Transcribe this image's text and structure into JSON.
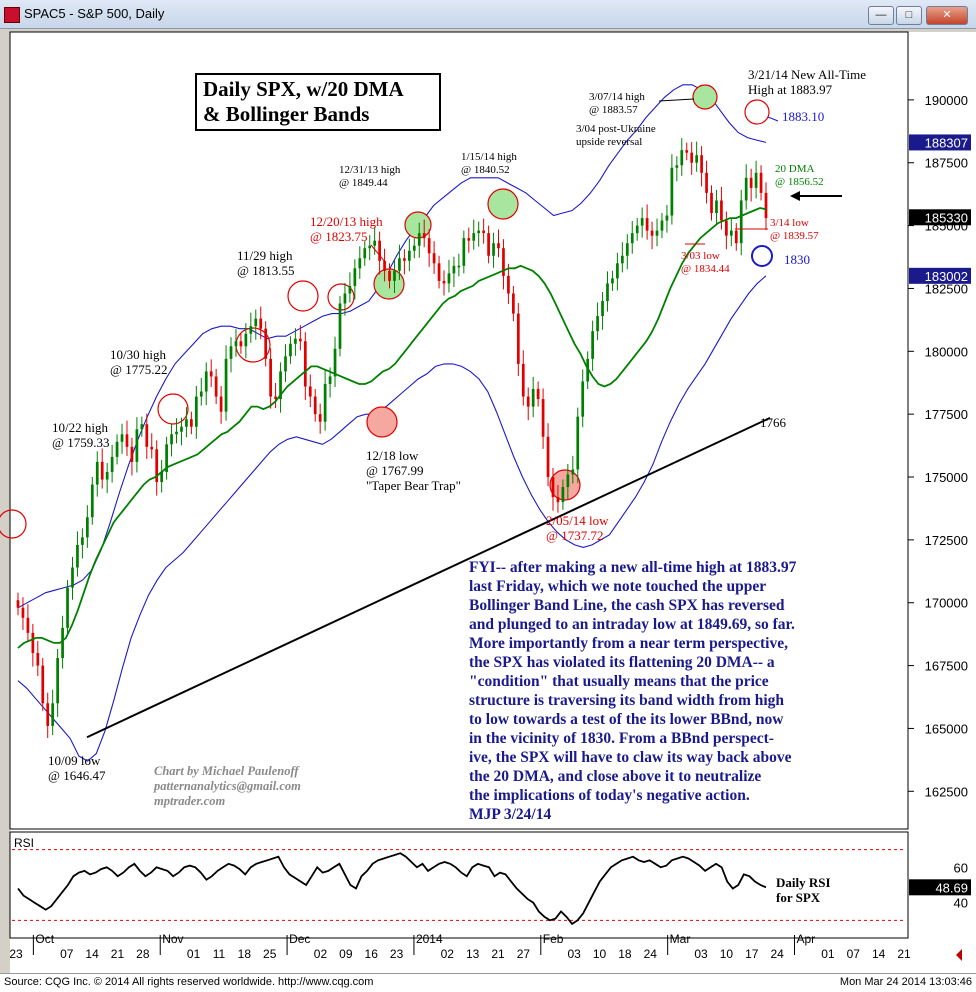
{
  "window": {
    "title": "SPAC5 - S&P 500, Daily",
    "buttons": {
      "minimize": "—",
      "restore": "□",
      "close": "✕"
    }
  },
  "chart_data": {
    "type": "candlestick",
    "title": "Daily SPX, w/20 DMA & Bollinger Bands",
    "title_lines": [
      "Daily SPX, w/20 DMA",
      "& Bollinger Bands"
    ],
    "y_ticks": [
      162500,
      165000,
      167500,
      170000,
      172500,
      175000,
      177500,
      180000,
      182500,
      185000,
      187500,
      190000
    ],
    "y_tick_labels": [
      "162500",
      "165000",
      "167500",
      "170000",
      "172500",
      "175000",
      "177500",
      "180000",
      "182500",
      "185000",
      "187500",
      "190000"
    ],
    "ylim": [
      161000,
      192700
    ],
    "last_price": "185330",
    "upper_band_value": "188307",
    "lower_band_value": "183002",
    "x_tick_labels": [
      "23",
      "Oct",
      "07",
      "14",
      "21",
      "28",
      "Nov",
      "01",
      "11",
      "18",
      "25",
      "Dec",
      "02",
      "09",
      "16",
      "23",
      "2014",
      "02",
      "13",
      "21",
      "27",
      "Feb",
      "03",
      "10",
      "18",
      "24",
      "Mar",
      "03",
      "10",
      "17",
      "24",
      "Apr",
      "01",
      "07",
      "14",
      "21"
    ],
    "close_path": [
      169800,
      169400,
      168800,
      168000,
      167500,
      166000,
      165100,
      166000,
      167800,
      169000,
      170600,
      171400,
      172300,
      172600,
      173400,
      174700,
      175600,
      174900,
      175200,
      175800,
      176400,
      176700,
      176200,
      175600,
      176900,
      177100,
      176200,
      176100,
      174800,
      175200,
      176300,
      176700,
      176800,
      177000,
      177300,
      177000,
      178200,
      178400,
      179200,
      179000,
      178200,
      177600,
      179700,
      180200,
      180400,
      180200,
      180700,
      181000,
      181300,
      180900,
      179700,
      178200,
      178100,
      179200,
      179800,
      180300,
      180500,
      180400,
      178600,
      178200,
      177500,
      177200,
      178700,
      179000,
      180100,
      181900,
      182300,
      182600,
      183300,
      183700,
      184100,
      184200,
      184400,
      183600,
      183200,
      182800,
      183200,
      183700,
      183600,
      184000,
      184200,
      184700,
      184500,
      183900,
      183500,
      182800,
      182700,
      183100,
      183400,
      183400,
      184500,
      184400,
      184700,
      184800,
      184700,
      183800,
      184300,
      184100,
      183000,
      182300,
      181500,
      179500,
      178200,
      177800,
      178500,
      178100,
      176600,
      175000,
      174200,
      174000,
      174600,
      175100,
      175300,
      177400,
      178800,
      179700,
      180800,
      181400,
      182000,
      182700,
      182900,
      183500,
      183800,
      184300,
      184700,
      185000,
      185300,
      184800,
      184600,
      184800,
      185200,
      185400,
      187300,
      187400,
      188000,
      187900,
      187500,
      187800,
      187100,
      186300,
      185500,
      186000,
      185200,
      184600,
      184800,
      184300,
      186000,
      186900,
      186500,
      187100,
      186300,
      185300
    ],
    "ma20_path": [
      168200,
      168400,
      168500,
      168600,
      168600,
      168500,
      168400,
      168400,
      168600,
      169100,
      169700,
      170400,
      171100,
      171700,
      172200,
      172700,
      173200,
      173500,
      173800,
      174100,
      174400,
      174700,
      174900,
      175000,
      175200,
      175400,
      175500,
      175600,
      175700,
      175800,
      175900,
      176100,
      176300,
      176500,
      176700,
      176800,
      177000,
      177200,
      177500,
      177800,
      177800,
      177700,
      177800,
      178000,
      178300,
      178600,
      178800,
      179000,
      179200,
      179400,
      179400,
      179300,
      179200,
      179100,
      179000,
      178900,
      178800,
      178700,
      178700,
      178800,
      179000,
      179200,
      179300,
      179500,
      179800,
      180100,
      180400,
      180700,
      181000,
      181300,
      181600,
      181900,
      182100,
      182200,
      182400,
      182500,
      182600,
      182800,
      182900,
      183000,
      183100,
      183200,
      183300,
      183300,
      183400,
      183300,
      183200,
      183000,
      182700,
      182300,
      181800,
      181300,
      180800,
      180300,
      179900,
      179400,
      179000,
      178700,
      178600,
      178700,
      178900,
      179200,
      179500,
      179800,
      180100,
      180400,
      180800,
      181300,
      181900,
      182500,
      183000,
      183500,
      183900,
      184200,
      184500,
      184700,
      184900,
      185100,
      185200,
      185300,
      185300,
      185400,
      185500,
      185600,
      185700,
      185652
    ],
    "upper_band_path": [
      169800,
      170000,
      170200,
      170400,
      170500,
      170600,
      170700,
      170900,
      171300,
      172100,
      173200,
      174400,
      175500,
      176500,
      177400,
      178200,
      178900,
      179500,
      179900,
      180300,
      180700,
      180900,
      181000,
      181000,
      180900,
      180900,
      180700,
      180500,
      180600,
      180600,
      180800,
      181000,
      181200,
      181400,
      181500,
      181500,
      181600,
      181800,
      182000,
      182500,
      183100,
      183800,
      184400,
      184900,
      185300,
      185800,
      186100,
      186400,
      186700,
      186900,
      186900,
      186900,
      186900,
      186700,
      186500,
      186300,
      186000,
      185700,
      185400,
      185500,
      185600,
      185900,
      186300,
      186800,
      187400,
      187900,
      188400,
      188800,
      189300,
      189700,
      190100,
      190400,
      190600,
      190600,
      190400,
      190100,
      189600,
      189100,
      188700,
      188500,
      188400,
      188307
    ],
    "lower_band_path": [
      166900,
      166600,
      166200,
      165800,
      165400,
      165000,
      164600,
      163900,
      163700,
      164000,
      164900,
      166100,
      167400,
      168600,
      169500,
      170300,
      170900,
      171400,
      171700,
      172000,
      172400,
      172800,
      173200,
      173600,
      174000,
      174400,
      174800,
      175200,
      175600,
      176000,
      176300,
      176500,
      176600,
      176500,
      176400,
      176300,
      176500,
      176800,
      177100,
      177400,
      177500,
      177500,
      177700,
      178000,
      178300,
      178600,
      178900,
      179100,
      179400,
      179500,
      179500,
      179400,
      179200,
      178900,
      178400,
      177600,
      176700,
      175800,
      175000,
      174300,
      173700,
      173200,
      172800,
      172500,
      172300,
      172200,
      172300,
      172500,
      172700,
      173200,
      173700,
      174200,
      174800,
      175500,
      176400,
      177200,
      177900,
      178500,
      179000,
      179500,
      180100,
      180700,
      181300,
      181800,
      182300,
      182700,
      183002
    ],
    "rsi": {
      "label": "RSI",
      "value": "48.69",
      "y_ticks": [
        "60",
        "40"
      ],
      "overbought": 70,
      "oversold": 30,
      "values": [
        48,
        44,
        42,
        40,
        38,
        36,
        38,
        42,
        46,
        50,
        55,
        57,
        58,
        56,
        57,
        59,
        60,
        58,
        55,
        57,
        60,
        62,
        58,
        55,
        57,
        60,
        59,
        58,
        55,
        57,
        60,
        61,
        60,
        57,
        53,
        55,
        58,
        60,
        62,
        61,
        59,
        56,
        60,
        62,
        63,
        64,
        65,
        66,
        60,
        56,
        54,
        52,
        50,
        55,
        60,
        57,
        58,
        60,
        62,
        56,
        50,
        48,
        55,
        58,
        62,
        64,
        65,
        66,
        67,
        68,
        66,
        63,
        60,
        62,
        58,
        60,
        62,
        63,
        62,
        60,
        57,
        55,
        60,
        62,
        61,
        60,
        55,
        57,
        56,
        52,
        48,
        45,
        42,
        40,
        35,
        32,
        30,
        31,
        35,
        32,
        28,
        30,
        34,
        40,
        46,
        52,
        56,
        60,
        62,
        64,
        65,
        66,
        64,
        63,
        64,
        62,
        60,
        61,
        64,
        65,
        66,
        65,
        63,
        61,
        58,
        60,
        62,
        60,
        52,
        48,
        50,
        56,
        55,
        52,
        50,
        48.69
      ]
    },
    "annotations": {
      "a1": {
        "lines": [
          "10/09 low",
          "@ 1646.47"
        ]
      },
      "a2": {
        "lines": [
          "10/22 high",
          "@ 1759.33"
        ]
      },
      "a3": {
        "lines": [
          "10/30 high",
          "@ 1775.22"
        ]
      },
      "a4": {
        "lines": [
          "11/29 high",
          "@ 1813.55"
        ]
      },
      "a5": {
        "lines": [
          "12/20/13 high",
          "@ 1823.75"
        ]
      },
      "a6": {
        "lines": [
          "12/31/13 high",
          "@ 1849.44"
        ]
      },
      "a7": {
        "lines": [
          "1/15/14 high",
          "@ 1840.52"
        ]
      },
      "a8": {
        "lines": [
          "3/04 post-Ukraine",
          "upside reversal"
        ]
      },
      "a9": {
        "lines": [
          "3/07/14 high",
          "@ 1883.57"
        ]
      },
      "a10": {
        "lines": [
          "3/21/14 New All-Time",
          "High at 1883.97"
        ]
      },
      "a11": {
        "lines": [
          "1883.10"
        ]
      },
      "a12": {
        "lines": [
          "20 DMA",
          "@ 1856.52"
        ]
      },
      "a13": {
        "lines": [
          "3/14 low",
          "@ 1839.57"
        ]
      },
      "a14": {
        "lines": [
          "3/03 low",
          "@ 1834.44"
        ]
      },
      "a15": {
        "lines": [
          "1830"
        ]
      },
      "a16": {
        "lines": [
          "12/18 low",
          "@ 1767.99",
          "\"Taper Bear Trap\""
        ]
      },
      "a17": {
        "lines": [
          "1766"
        ]
      },
      "a18": {
        "lines": [
          "2/05/14 low",
          "@ 1737.72"
        ]
      },
      "a19": {
        "lines": [
          "Daily RSI",
          "for SPX"
        ]
      }
    },
    "note_lines": [
      "FYI-- after making a new all-time high at 1883.97",
      "last Friday, which we note touched the upper",
      "Bollinger Band Line, the cash SPX has reversed",
      "and plunged to an intraday low at 1849.69, so far.",
      "More importantly from a near term perspective,",
      "the SPX has violated its flattening 20 DMA-- a",
      "\"condition\" that usually means that the price",
      "structure is traversing its band width from high",
      "to low towards a test of the its lower BBnd, now",
      "in the vicinity of 1830. From a BBnd perspect-",
      "ive, the SPX will have to claw its way back above",
      "the 20 DMA, and close above it to neutralize",
      "the implications of today's negative action.",
      "MJP  3/24/14"
    ],
    "credit_lines": [
      "Chart by Michael Paulenoff",
      "patternanalytics@gmail.com",
      "mptrader.com"
    ],
    "colors": {
      "up": "#008000",
      "down": "#e00000",
      "ma20": "#008000",
      "bands": "#1a1ac8",
      "trendline": "#000000",
      "circle_red": "#e00000",
      "highlight_fill": "#a8e6a0",
      "low_fill": "#f4a8a0"
    }
  },
  "footer": {
    "source": "Source: CQG Inc. © 2014 All rights reserved worldwide. http://www.cqg.com",
    "timestamp": "Mon Mar 24 2014 13:03:46"
  }
}
